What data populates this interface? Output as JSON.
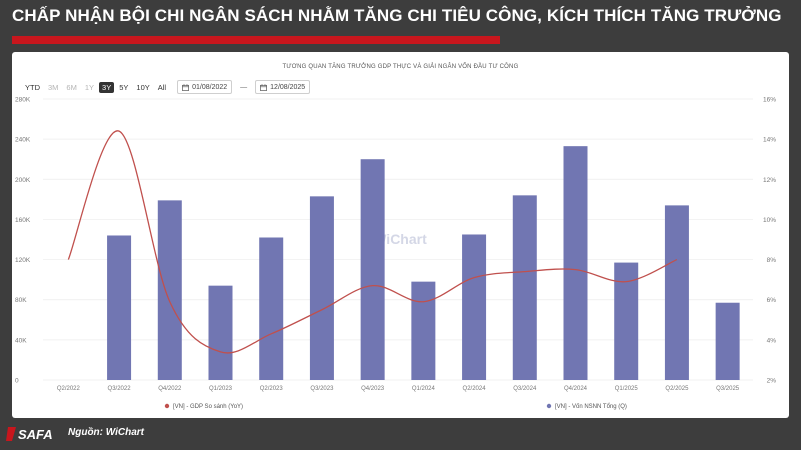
{
  "headline": "CHẤP NHẬN BỘI CHI NGÂN SÁCH NHẰM TĂNG CHI TIÊU CÔNG, KÍCH THÍCH TĂNG TRƯỞNG",
  "source": "Nguồn: WiChart",
  "logo_text": "SAFA",
  "toolbar": {
    "ranges": [
      "YTD",
      "3M",
      "6M",
      "1Y",
      "3Y",
      "5Y",
      "10Y",
      "All"
    ],
    "active_range": "3Y",
    "date_from": "01/08/2022",
    "date_to": "12/08/2025",
    "separator": "—"
  },
  "watermark": "WiChart",
  "colors": {
    "bar": "#7176b2",
    "line": "#c0504d",
    "accent_red": "#c8161d",
    "background": "#3d3d3d"
  },
  "chart_data": {
    "type": "bar",
    "title": "TƯƠNG QUAN TĂNG TRƯỞNG GDP THỰC VÀ GIẢI NGÂN VỐN ĐẦU TƯ CÔNG",
    "categories": [
      "Q2/2022",
      "Q3/2022",
      "Q4/2022",
      "Q1/2023",
      "Q2/2023",
      "Q3/2023",
      "Q4/2023",
      "Q1/2024",
      "Q2/2024",
      "Q3/2024",
      "Q4/2024",
      "Q1/2025",
      "Q2/2025",
      "Q3/2025"
    ],
    "series": [
      {
        "name": "[VN] - Vốn NSNN Tổng (Q)",
        "type": "bar",
        "axis": "left",
        "values": [
          null,
          144000,
          179000,
          94000,
          142000,
          183000,
          220000,
          98000,
          145000,
          184000,
          233000,
          117000,
          174000,
          77000
        ]
      },
      {
        "name": "[VN] - GDP So sánh (YoY)",
        "type": "line",
        "axis": "right",
        "values": [
          8.0,
          14.4,
          5.9,
          3.4,
          4.3,
          5.5,
          6.7,
          5.9,
          7.1,
          7.4,
          7.5,
          6.9,
          8.0,
          null
        ]
      }
    ],
    "y_left": {
      "min": 0,
      "max": 280000,
      "ticks": [
        "0",
        "40K",
        "80K",
        "120K",
        "160K",
        "200K",
        "240K",
        "280K"
      ]
    },
    "y_right": {
      "min": 2,
      "max": 16,
      "ticks": [
        "2%",
        "4%",
        "6%",
        "8%",
        "10%",
        "12%",
        "14%",
        "16%"
      ]
    },
    "grid": true,
    "legend_position": "bottom"
  }
}
